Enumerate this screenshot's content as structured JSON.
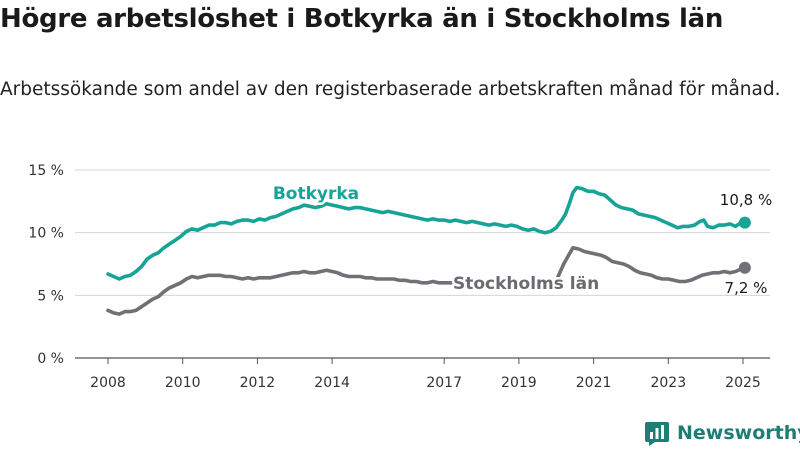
{
  "title": "Högre arbetslöshet i Botkyrka än i Stockholms län",
  "subtitle": "Arbetssökande som andel av den registerbaserade arbetskraften månad för månad.",
  "brand": {
    "name": "Newsworthy",
    "icon": "bar-chart-logo-icon",
    "color": "#1e7e74"
  },
  "chart_data": {
    "type": "line",
    "xlim": [
      2008,
      2025.4
    ],
    "ylim": [
      0,
      15
    ],
    "y_ticks": [
      {
        "value": 0,
        "label": "0 %"
      },
      {
        "value": 5,
        "label": "5 %"
      },
      {
        "value": 10,
        "label": "10 %"
      },
      {
        "value": 15,
        "label": "15 %"
      }
    ],
    "x_ticks": [
      {
        "value": 2008,
        "label": "2008"
      },
      {
        "value": 2010,
        "label": "2010"
      },
      {
        "value": 2012,
        "label": "2012"
      },
      {
        "value": 2014,
        "label": "2014"
      },
      {
        "value": 2017,
        "label": "2017"
      },
      {
        "value": 2019,
        "label": "2019"
      },
      {
        "value": 2021,
        "label": "2021"
      },
      {
        "value": 2023,
        "label": "2023"
      },
      {
        "value": 2025,
        "label": "2025"
      }
    ],
    "grid": "horizontal",
    "series": [
      {
        "name": "Botkyrka",
        "color": "#17a396",
        "end_label": "10,8 %",
        "points": [
          [
            2008.0,
            6.7
          ],
          [
            2008.15,
            6.5
          ],
          [
            2008.3,
            6.3
          ],
          [
            2008.45,
            6.5
          ],
          [
            2008.6,
            6.6
          ],
          [
            2008.75,
            6.9
          ],
          [
            2008.9,
            7.3
          ],
          [
            2009.05,
            7.9
          ],
          [
            2009.2,
            8.2
          ],
          [
            2009.35,
            8.4
          ],
          [
            2009.5,
            8.8
          ],
          [
            2009.65,
            9.1
          ],
          [
            2009.8,
            9.4
          ],
          [
            2009.95,
            9.7
          ],
          [
            2010.1,
            10.1
          ],
          [
            2010.25,
            10.3
          ],
          [
            2010.4,
            10.2
          ],
          [
            2010.55,
            10.4
          ],
          [
            2010.7,
            10.6
          ],
          [
            2010.85,
            10.6
          ],
          [
            2011.0,
            10.8
          ],
          [
            2011.15,
            10.8
          ],
          [
            2011.3,
            10.7
          ],
          [
            2011.45,
            10.9
          ],
          [
            2011.6,
            11.0
          ],
          [
            2011.75,
            11.0
          ],
          [
            2011.9,
            10.9
          ],
          [
            2012.05,
            11.1
          ],
          [
            2012.2,
            11.0
          ],
          [
            2012.35,
            11.2
          ],
          [
            2012.5,
            11.3
          ],
          [
            2012.65,
            11.5
          ],
          [
            2012.8,
            11.7
          ],
          [
            2012.95,
            11.9
          ],
          [
            2013.1,
            12.0
          ],
          [
            2013.25,
            12.2
          ],
          [
            2013.4,
            12.1
          ],
          [
            2013.55,
            12.0
          ],
          [
            2013.7,
            12.1
          ],
          [
            2013.85,
            12.3
          ],
          [
            2014.0,
            12.2
          ],
          [
            2014.15,
            12.1
          ],
          [
            2014.3,
            12.0
          ],
          [
            2014.45,
            11.9
          ],
          [
            2014.6,
            12.0
          ],
          [
            2014.75,
            12.0
          ],
          [
            2014.9,
            11.9
          ],
          [
            2015.05,
            11.8
          ],
          [
            2015.2,
            11.7
          ],
          [
            2015.35,
            11.6
          ],
          [
            2015.5,
            11.7
          ],
          [
            2015.65,
            11.6
          ],
          [
            2015.8,
            11.5
          ],
          [
            2015.95,
            11.4
          ],
          [
            2016.1,
            11.3
          ],
          [
            2016.25,
            11.2
          ],
          [
            2016.4,
            11.1
          ],
          [
            2016.55,
            11.0
          ],
          [
            2016.7,
            11.1
          ],
          [
            2016.85,
            11.0
          ],
          [
            2017.0,
            11.0
          ],
          [
            2017.15,
            10.9
          ],
          [
            2017.3,
            11.0
          ],
          [
            2017.45,
            10.9
          ],
          [
            2017.6,
            10.8
          ],
          [
            2017.75,
            10.9
          ],
          [
            2017.9,
            10.8
          ],
          [
            2018.05,
            10.7
          ],
          [
            2018.2,
            10.6
          ],
          [
            2018.35,
            10.7
          ],
          [
            2018.5,
            10.6
          ],
          [
            2018.65,
            10.5
          ],
          [
            2018.8,
            10.6
          ],
          [
            2018.95,
            10.5
          ],
          [
            2019.1,
            10.3
          ],
          [
            2019.25,
            10.2
          ],
          [
            2019.4,
            10.3
          ],
          [
            2019.55,
            10.1
          ],
          [
            2019.7,
            10.0
          ],
          [
            2019.85,
            10.1
          ],
          [
            2020.0,
            10.4
          ],
          [
            2020.15,
            11.0
          ],
          [
            2020.25,
            11.5
          ],
          [
            2020.35,
            12.3
          ],
          [
            2020.45,
            13.2
          ],
          [
            2020.55,
            13.6
          ],
          [
            2020.7,
            13.5
          ],
          [
            2020.85,
            13.3
          ],
          [
            2021.0,
            13.3
          ],
          [
            2021.15,
            13.1
          ],
          [
            2021.3,
            13.0
          ],
          [
            2021.45,
            12.6
          ],
          [
            2021.6,
            12.2
          ],
          [
            2021.75,
            12.0
          ],
          [
            2021.9,
            11.9
          ],
          [
            2022.05,
            11.8
          ],
          [
            2022.2,
            11.5
          ],
          [
            2022.35,
            11.4
          ],
          [
            2022.5,
            11.3
          ],
          [
            2022.65,
            11.2
          ],
          [
            2022.8,
            11.0
          ],
          [
            2022.95,
            10.8
          ],
          [
            2023.1,
            10.6
          ],
          [
            2023.25,
            10.4
          ],
          [
            2023.4,
            10.5
          ],
          [
            2023.55,
            10.5
          ],
          [
            2023.7,
            10.6
          ],
          [
            2023.85,
            10.9
          ],
          [
            2023.95,
            11.0
          ],
          [
            2024.05,
            10.5
          ],
          [
            2024.2,
            10.4
          ],
          [
            2024.35,
            10.6
          ],
          [
            2024.5,
            10.6
          ],
          [
            2024.65,
            10.7
          ],
          [
            2024.8,
            10.5
          ],
          [
            2024.95,
            10.8
          ],
          [
            2025.05,
            10.8
          ]
        ]
      },
      {
        "name": "Stockholms län",
        "color": "#707077",
        "end_label": "7,2 %",
        "points": [
          [
            2008.0,
            3.8
          ],
          [
            2008.15,
            3.6
          ],
          [
            2008.3,
            3.5
          ],
          [
            2008.45,
            3.7
          ],
          [
            2008.6,
            3.7
          ],
          [
            2008.75,
            3.8
          ],
          [
            2008.9,
            4.1
          ],
          [
            2009.05,
            4.4
          ],
          [
            2009.2,
            4.7
          ],
          [
            2009.35,
            4.9
          ],
          [
            2009.5,
            5.3
          ],
          [
            2009.65,
            5.6
          ],
          [
            2009.8,
            5.8
          ],
          [
            2009.95,
            6.0
          ],
          [
            2010.1,
            6.3
          ],
          [
            2010.25,
            6.5
          ],
          [
            2010.4,
            6.4
          ],
          [
            2010.55,
            6.5
          ],
          [
            2010.7,
            6.6
          ],
          [
            2010.85,
            6.6
          ],
          [
            2011.0,
            6.6
          ],
          [
            2011.15,
            6.5
          ],
          [
            2011.3,
            6.5
          ],
          [
            2011.45,
            6.4
          ],
          [
            2011.6,
            6.3
          ],
          [
            2011.75,
            6.4
          ],
          [
            2011.9,
            6.3
          ],
          [
            2012.05,
            6.4
          ],
          [
            2012.2,
            6.4
          ],
          [
            2012.35,
            6.4
          ],
          [
            2012.5,
            6.5
          ],
          [
            2012.65,
            6.6
          ],
          [
            2012.8,
            6.7
          ],
          [
            2012.95,
            6.8
          ],
          [
            2013.1,
            6.8
          ],
          [
            2013.25,
            6.9
          ],
          [
            2013.4,
            6.8
          ],
          [
            2013.55,
            6.8
          ],
          [
            2013.7,
            6.9
          ],
          [
            2013.85,
            7.0
          ],
          [
            2014.0,
            6.9
          ],
          [
            2014.15,
            6.8
          ],
          [
            2014.3,
            6.6
          ],
          [
            2014.45,
            6.5
          ],
          [
            2014.6,
            6.5
          ],
          [
            2014.75,
            6.5
          ],
          [
            2014.9,
            6.4
          ],
          [
            2015.05,
            6.4
          ],
          [
            2015.2,
            6.3
          ],
          [
            2015.35,
            6.3
          ],
          [
            2015.5,
            6.3
          ],
          [
            2015.65,
            6.3
          ],
          [
            2015.8,
            6.2
          ],
          [
            2015.95,
            6.2
          ],
          [
            2016.1,
            6.1
          ],
          [
            2016.25,
            6.1
          ],
          [
            2016.4,
            6.0
          ],
          [
            2016.55,
            6.0
          ],
          [
            2016.7,
            6.1
          ],
          [
            2016.85,
            6.0
          ],
          [
            2017.0,
            6.0
          ],
          [
            2017.15,
            6.0
          ],
          [
            2017.25,
            6.0
          ],
          [
            2020.05,
            6.5
          ],
          [
            2020.2,
            7.5
          ],
          [
            2020.35,
            8.3
          ],
          [
            2020.45,
            8.8
          ],
          [
            2020.6,
            8.7
          ],
          [
            2020.75,
            8.5
          ],
          [
            2020.9,
            8.4
          ],
          [
            2021.05,
            8.3
          ],
          [
            2021.2,
            8.2
          ],
          [
            2021.35,
            8.0
          ],
          [
            2021.5,
            7.7
          ],
          [
            2021.65,
            7.6
          ],
          [
            2021.8,
            7.5
          ],
          [
            2021.95,
            7.3
          ],
          [
            2022.1,
            7.0
          ],
          [
            2022.25,
            6.8
          ],
          [
            2022.4,
            6.7
          ],
          [
            2022.55,
            6.6
          ],
          [
            2022.7,
            6.4
          ],
          [
            2022.85,
            6.3
          ],
          [
            2023.0,
            6.3
          ],
          [
            2023.15,
            6.2
          ],
          [
            2023.3,
            6.1
          ],
          [
            2023.45,
            6.1
          ],
          [
            2023.6,
            6.2
          ],
          [
            2023.75,
            6.4
          ],
          [
            2023.9,
            6.6
          ],
          [
            2024.05,
            6.7
          ],
          [
            2024.2,
            6.8
          ],
          [
            2024.35,
            6.8
          ],
          [
            2024.5,
            6.9
          ],
          [
            2024.65,
            6.8
          ],
          [
            2024.8,
            6.9
          ],
          [
            2024.95,
            7.1
          ],
          [
            2025.05,
            7.2
          ]
        ]
      }
    ]
  }
}
